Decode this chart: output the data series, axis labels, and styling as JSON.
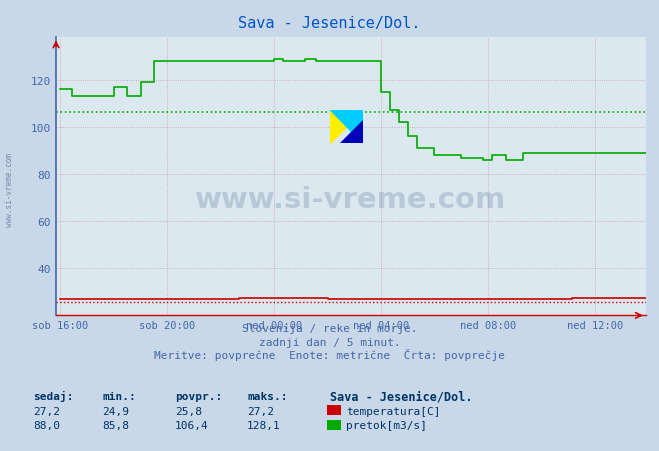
{
  "title": "Sava - Jesenice/Dol.",
  "title_color": "#0055cc",
  "bg_color": "#c8d8e8",
  "plot_bg_color": "#dce8f0",
  "grid_color": "#cc99aa",
  "tick_color": "#4466aa",
  "x_tick_labels": [
    "sob 16:00",
    "sob 20:00",
    "ned 00:00",
    "ned 04:00",
    "ned 08:00",
    "ned 12:00"
  ],
  "x_tick_positions": [
    0,
    48,
    96,
    144,
    192,
    240
  ],
  "ylim": [
    20,
    138
  ],
  "yticks": [
    40,
    60,
    80,
    100,
    120
  ],
  "xlim": [
    -2,
    263
  ],
  "temp_color": "#cc0000",
  "flow_color": "#00aa00",
  "watermark_text": "www.si-vreme.com",
  "watermark_color": "#1a3a6a",
  "footer_line1": "Slovenija / reke in morje.",
  "footer_line2": "zadnji dan / 5 minut.",
  "footer_line3": "Meritve: povprečne  Enote: metrične  Črta: povprečje",
  "footer_color": "#4466aa",
  "legend_title": "Sava - Jesenice/Dol.",
  "legend_items": [
    "temperatura[C]",
    "pretok[m3/s]"
  ],
  "legend_colors": [
    "#cc0000",
    "#00aa00"
  ],
  "stats_headers": [
    "sedaj:",
    "min.:",
    "povpr.:",
    "maks.:"
  ],
  "stats_temp": [
    "27,2",
    "24,9",
    "25,8",
    "27,2"
  ],
  "stats_flow": [
    "88,0",
    "85,8",
    "106,4",
    "128,1"
  ],
  "avg_flow_value": 106.4,
  "avg_temp_value": 25.8,
  "n_points": 265,
  "left_spine_color": "#4466aa",
  "arrow_color": "#cc0000"
}
